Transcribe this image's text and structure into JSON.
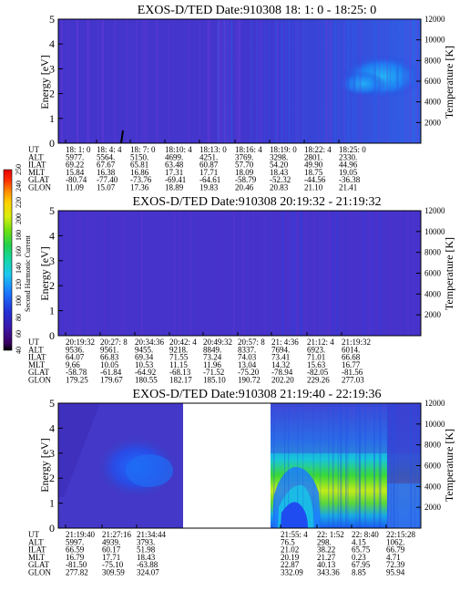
{
  "chart_data": [
    {
      "type": "heatmap",
      "title": "EXOS-D/TED   Date:910308   18: 1: 0 - 18:25: 0",
      "ylabel": "Energy [eV]",
      "y2label": "Temperature [K]",
      "yticks": [
        "0",
        "1",
        "2",
        "3",
        "4",
        "5"
      ],
      "y2ticks": [
        "2000",
        "4000",
        "6000",
        "8000",
        "10000",
        "12000"
      ],
      "ylim": [
        0,
        5
      ],
      "y2lim": [
        0,
        12000
      ],
      "ephemeris": {
        "rows": [
          "UT",
          "ALT",
          "ILAT",
          "MLT",
          "GLAT",
          "GLON"
        ],
        "columns": [
          [
            "18: 1: 0",
            "5977.",
            "69.22",
            "15.84",
            "-80.74",
            "11.09"
          ],
          [
            "18: 4: 4",
            "5564.",
            "67.67",
            "16.38",
            "-77.40",
            "15.07"
          ],
          [
            "18: 7: 0",
            "5150.",
            "65.81",
            "16.86",
            "-73.76",
            "17.36"
          ],
          [
            "18:10: 4",
            "4699.",
            "63.48",
            "17.31",
            "-69.41",
            "18.89"
          ],
          [
            "18:13: 0",
            "4251.",
            "60.87",
            "17.71",
            "-64.61",
            "19.83"
          ],
          [
            "18:16: 4",
            "3769.",
            "57.70",
            "18.09",
            "-58.79",
            "20.46"
          ],
          [
            "18:19: 0",
            "3298.",
            "54.20",
            "18.43",
            "-52.32",
            "20.83"
          ],
          [
            "18:22: 4",
            "2801.",
            "49.90",
            "18.75",
            "-44.56",
            "21.10"
          ],
          [
            "18:25: 0",
            "2330.",
            "44.96",
            "19.05",
            "-36.38",
            "21.41"
          ]
        ]
      }
    },
    {
      "type": "heatmap",
      "title": "EXOS-D/TED   Date:910308   20:19:32 - 21:19:32",
      "ylabel": "Energy [eV]",
      "y2label": "Temperature [K]",
      "yticks": [
        "0",
        "1",
        "2",
        "3",
        "4",
        "5"
      ],
      "y2ticks": [
        "2000",
        "4000",
        "6000",
        "8000",
        "10000",
        "12000"
      ],
      "ylim": [
        0,
        5
      ],
      "y2lim": [
        0,
        12000
      ],
      "ephemeris": {
        "rows": [
          "UT",
          "ALT",
          "ILAT",
          "MLT",
          "GLAT",
          "GLON"
        ],
        "columns": [
          [
            "20:19:32",
            "9536.",
            "64.07",
            "9.66",
            "-58.78",
            "179.25"
          ],
          [
            "20:27: 8",
            "9561.",
            "66.83",
            "10.05",
            "-61.84",
            "179.67"
          ],
          [
            "20:34:36",
            "9455.",
            "69.34",
            "10.53",
            "-64.92",
            "180.55"
          ],
          [
            "20:42: 4",
            "9218.",
            "71.55",
            "11.15",
            "-68.13",
            "182.17"
          ],
          [
            "20:49:32",
            "8849.",
            "73.24",
            "11.96",
            "-71.52",
            "185.10"
          ],
          [
            "20:57: 8",
            "8337.",
            "74.03",
            "13.04",
            "-75.20",
            "190.72"
          ],
          [
            "21: 4:36",
            "7694.",
            "73.41",
            "14.32",
            "-78.94",
            "202.20"
          ],
          [
            "21:12: 4",
            "6923.",
            "71.01",
            "15.63",
            "-82.05",
            "229.26"
          ],
          [
            "21:19:32",
            "6014.",
            "66.68",
            "16.77",
            "-81.56",
            "277.03"
          ]
        ]
      }
    },
    {
      "type": "heatmap",
      "title": "EXOS-D/TED   Date:910308   21:19:40 - 22:19:36",
      "ylabel": "Energy [eV]",
      "y2label": "Temperature [K]",
      "yticks": [
        "0",
        "1",
        "2",
        "3",
        "4",
        "5"
      ],
      "y2ticks": [
        "2000",
        "4000",
        "6000",
        "8000",
        "10000",
        "12000"
      ],
      "ylim": [
        0,
        5
      ],
      "y2lim": [
        0,
        12000
      ],
      "ephemeris": {
        "rows": [
          "UT",
          "ALT",
          "ILAT",
          "MLT",
          "GLAT",
          "GLON"
        ],
        "columns": [
          [
            "21:19:40",
            "5997.",
            "66.59",
            "16.79",
            "-81.50",
            "277.82"
          ],
          [
            "21:27:16",
            "4939.",
            "60.17",
            "17.71",
            "-75.10",
            "309.59"
          ],
          [
            "21:34:44",
            "3793.",
            "51.98",
            "18.43",
            "-63.88",
            "324.07"
          ],
          [
            "21:55: 4",
            "76.5",
            "21.02",
            "20.19",
            "22.87",
            "332.09"
          ],
          [
            "22: 1:52",
            "298.",
            "38.22",
            "21.27",
            "40.13",
            "343.36"
          ],
          [
            "22: 8:40",
            "4.15",
            "65.75",
            "0.23",
            "67.95",
            "8.85"
          ],
          [
            "22:15:28",
            "1062.",
            "66.79",
            "4.71",
            "72.39",
            "95.94"
          ]
        ]
      }
    }
  ],
  "colorbar": {
    "label": "Second Harmonic Current",
    "ticks": [
      "40",
      "60",
      "80",
      "100",
      "120",
      "140",
      "160",
      "180",
      "200",
      "220",
      "240",
      "250"
    ]
  }
}
